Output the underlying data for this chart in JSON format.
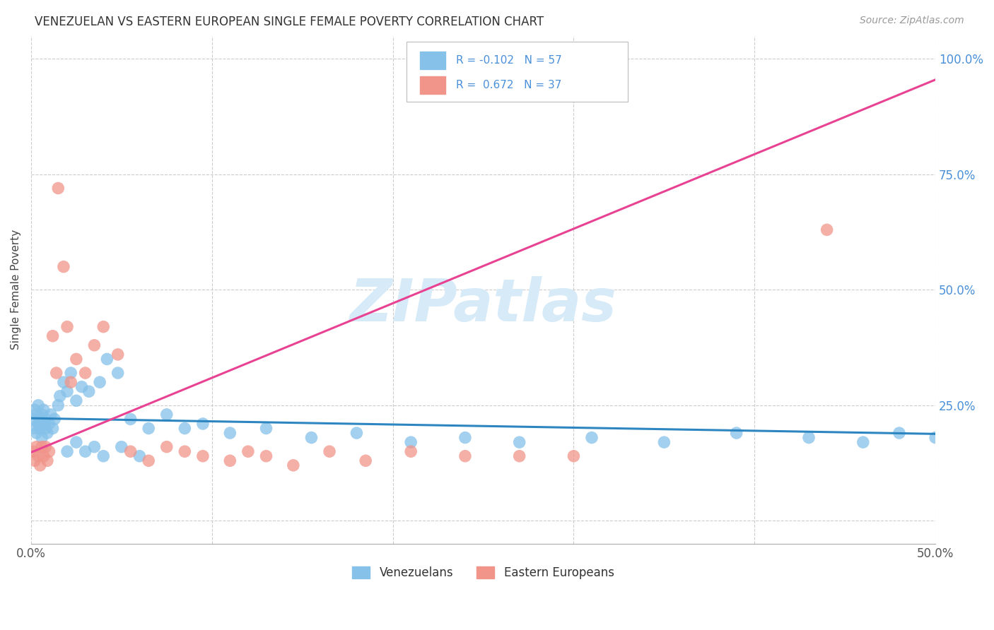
{
  "title": "VENEZUELAN VS EASTERN EUROPEAN SINGLE FEMALE POVERTY CORRELATION CHART",
  "source": "Source: ZipAtlas.com",
  "ylabel": "Single Female Poverty",
  "xlim": [
    0.0,
    0.5
  ],
  "ylim": [
    -0.05,
    1.05
  ],
  "yticks": [
    0.0,
    0.25,
    0.5,
    0.75,
    1.0
  ],
  "ytick_labels": [
    "",
    "25.0%",
    "50.0%",
    "75.0%",
    "100.0%"
  ],
  "xticks": [
    0.0,
    0.1,
    0.2,
    0.3,
    0.4,
    0.5
  ],
  "xtick_labels": [
    "0.0%",
    "",
    "",
    "",
    "",
    "50.0%"
  ],
  "blue_color": "#85C1E9",
  "pink_color": "#F1948A",
  "blue_line_color": "#2E86C1",
  "pink_line_color": "#E84393",
  "watermark_text": "ZIPatlas",
  "watermark_color": "#D6EAF8",
  "blue_scatter_x": [
    0.001,
    0.002,
    0.002,
    0.003,
    0.003,
    0.004,
    0.004,
    0.005,
    0.005,
    0.006,
    0.006,
    0.007,
    0.007,
    0.008,
    0.008,
    0.009,
    0.01,
    0.011,
    0.012,
    0.013,
    0.015,
    0.016,
    0.018,
    0.02,
    0.022,
    0.025,
    0.028,
    0.032,
    0.038,
    0.042,
    0.048,
    0.055,
    0.065,
    0.075,
    0.085,
    0.095,
    0.11,
    0.13,
    0.155,
    0.18,
    0.21,
    0.24,
    0.27,
    0.31,
    0.35,
    0.39,
    0.43,
    0.46,
    0.48,
    0.5,
    0.02,
    0.025,
    0.03,
    0.035,
    0.04,
    0.05,
    0.06
  ],
  "blue_scatter_y": [
    0.22,
    0.2,
    0.24,
    0.19,
    0.23,
    0.21,
    0.25,
    0.2,
    0.22,
    0.18,
    0.23,
    0.21,
    0.24,
    0.2,
    0.22,
    0.19,
    0.21,
    0.23,
    0.2,
    0.22,
    0.25,
    0.27,
    0.3,
    0.28,
    0.32,
    0.26,
    0.29,
    0.28,
    0.3,
    0.35,
    0.32,
    0.22,
    0.2,
    0.23,
    0.2,
    0.21,
    0.19,
    0.2,
    0.18,
    0.19,
    0.17,
    0.18,
    0.17,
    0.18,
    0.17,
    0.19,
    0.18,
    0.17,
    0.19,
    0.18,
    0.15,
    0.17,
    0.15,
    0.16,
    0.14,
    0.16,
    0.14
  ],
  "pink_scatter_x": [
    0.001,
    0.002,
    0.003,
    0.004,
    0.005,
    0.006,
    0.007,
    0.008,
    0.009,
    0.01,
    0.012,
    0.014,
    0.015,
    0.018,
    0.02,
    0.022,
    0.025,
    0.03,
    0.035,
    0.04,
    0.048,
    0.055,
    0.065,
    0.075,
    0.085,
    0.095,
    0.11,
    0.12,
    0.13,
    0.145,
    0.165,
    0.185,
    0.21,
    0.24,
    0.27,
    0.3,
    0.44
  ],
  "pink_scatter_y": [
    0.15,
    0.13,
    0.16,
    0.14,
    0.12,
    0.16,
    0.14,
    0.16,
    0.13,
    0.15,
    0.4,
    0.32,
    0.72,
    0.55,
    0.42,
    0.3,
    0.35,
    0.32,
    0.38,
    0.42,
    0.36,
    0.15,
    0.13,
    0.16,
    0.15,
    0.14,
    0.13,
    0.15,
    0.14,
    0.12,
    0.15,
    0.13,
    0.15,
    0.14,
    0.14,
    0.14,
    0.63
  ],
  "blue_trend_x": [
    0.0,
    0.5
  ],
  "blue_trend_y": [
    0.222,
    0.188
  ],
  "pink_trend_x": [
    0.0,
    0.5
  ],
  "pink_trend_y": [
    0.148,
    0.955
  ]
}
